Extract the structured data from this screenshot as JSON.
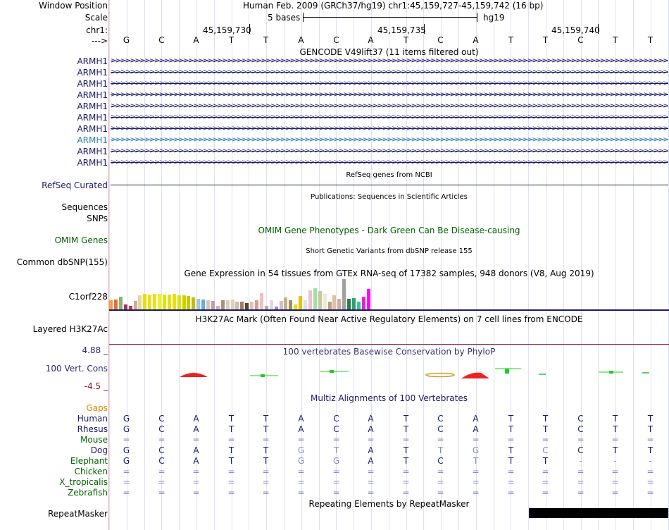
{
  "header": {
    "window_position_label": "Window Position",
    "window_position_value": "Human Feb. 2009 (GRCh37/hg19)   chr1:45,159,727-45,159,742 (16 bp)",
    "scale_label": "Scale",
    "scale_value": "5 bases",
    "scale_assembly": "hg19",
    "chrom_label": "chr1:",
    "coord_ticks": [
      "45,159,730",
      "45,159,735",
      "45,159,740"
    ],
    "strand_label": "--->",
    "bases": [
      "G",
      "C",
      "A",
      "T",
      "T",
      "A",
      "C",
      "A",
      "T",
      "C",
      "A",
      "T",
      "T",
      "C",
      "T",
      "T"
    ]
  },
  "gencode": {
    "title": "GENCODE V49lift37 (11 items filtered out)",
    "items": [
      {
        "label": "ARMH1",
        "highlight": false
      },
      {
        "label": "ARMH1",
        "highlight": false
      },
      {
        "label": "ARMH1",
        "highlight": false
      },
      {
        "label": "ARMH1",
        "highlight": false
      },
      {
        "label": "ARMH1",
        "highlight": false
      },
      {
        "label": "ARMH1",
        "highlight": false
      },
      {
        "label": "ARMH1",
        "highlight": false
      },
      {
        "label": "ARMH1",
        "highlight": true
      },
      {
        "label": "ARMH1",
        "highlight": false
      },
      {
        "label": "ARMH1",
        "highlight": false
      }
    ],
    "arrow_glyphs": ">>>>>>>>>>>>>>>>>>>>>>>>>>>>>>>>>>>>>>>>>>>>>>>>>>>>>>>>>>>>>>>>>>>>>>>>>>>>>>>>>>>>>>>>>>>>>>>>>>>>>>>>>>>>>>>>>>>>>>>>>>>>>>>>>>>>>>>>>>>>>>>>>>>>>>>>>>>>>>>>>>>>>>>"
  },
  "refseq": {
    "title": "RefSeq genes from NCBI",
    "label": "RefSeq Curated"
  },
  "publications": {
    "title": "Publications: Sequences in Scientific Articles",
    "label_sequences": "Sequences",
    "label_snps": "SNPs"
  },
  "omim": {
    "title": "OMIM Gene Phenotypes - Dark Green Can Be Disease-causing",
    "label": "OMIM Genes"
  },
  "dbsnp": {
    "title": "Short Genetic Variants from dbSNP release 155",
    "label": "Common dbSNP(155)"
  },
  "gtex": {
    "title": "Gene Expression in 54 tissues from GTEx RNA-seq of 17382 samples, 948 donors (V8, Aug 2019)",
    "label": "C1orf228",
    "bar_values": [
      0.3,
      0.32,
      0.4,
      0.15,
      0.12,
      0.28,
      0.45,
      0.5,
      0.48,
      0.5,
      0.5,
      0.48,
      0.48,
      0.5,
      0.46,
      0.46,
      0.44,
      0.38,
      0.34,
      0.32,
      0.3,
      0.28,
      0.12,
      0.3,
      0.3,
      0.32,
      0.26,
      0.24,
      0.2,
      0.26,
      0.3,
      0.52,
      0.12,
      0.3,
      0.1,
      0.28,
      0.38,
      0.3,
      0.16,
      0.44,
      0.3,
      0.62,
      0.68,
      0.58,
      0.5,
      0.26,
      0.46,
      0.34,
      0.98,
      0.34,
      0.36,
      0.26,
      0.4,
      0.66
    ],
    "bar_colors": [
      "#f0a050",
      "#e07040",
      "#90b070",
      "#a03070",
      "#e03030",
      "#c0b0a0",
      "#f0d0a0",
      "#e8e000",
      "#e8e020",
      "#e8e020",
      "#f0f020",
      "#e8e000",
      "#e8e000",
      "#e8e010",
      "#e0e000",
      "#d0d000",
      "#c8c800",
      "#c0c000",
      "#a0c8e0",
      "#60b0d0",
      "#e0c0c0",
      "#c0a0a0",
      "#d0b0b0",
      "#b09070",
      "#d8d0c0",
      "#e0d0b0",
      "#c8c0b0",
      "#a08060",
      "#604030",
      "#e8c0b0",
      "#d0a090",
      "#f0c0c0",
      "#c0a0b0",
      "#e0d8e0",
      "#b080b0",
      "#d0c0c0",
      "#c0b090",
      "#a09060",
      "#e8e000",
      "#f0c000",
      "#e0e0e0",
      "#f0c0d0",
      "#a0e0a0",
      "#c8c8a0",
      "#f0e8d0",
      "#c0a080",
      "#e0c0a0",
      "#d0b090",
      "#a0a0a0",
      "#208040",
      "#30a070",
      "#40c090",
      "#e020e0",
      "#ff00ff"
    ]
  },
  "h3k27ac": {
    "title": "H3K27Ac Mark (Often Found Near Active Regulatory Elements) on 7 cell lines from ENCODE",
    "label": "Layered H3K27Ac"
  },
  "phylop": {
    "title": "100 vertebrates Basewise Conservation by PhyloP",
    "label": "100 Vert. Cons",
    "axis_max": "4.88 _",
    "axis_min": "-4.5 _",
    "colors": {
      "positive": "#22cc22",
      "negative": "#ee2222",
      "neutral": "#c8a030",
      "title": "#33336e",
      "axis_max": "#2a2a7a",
      "axis_min": "#8b1a1a"
    }
  },
  "multiz": {
    "title": "Multiz Alignments of 100 Vertebrates",
    "gaps_label": "Gaps",
    "species": [
      {
        "name": "Human",
        "bases": [
          "G",
          "C",
          "A",
          "T",
          "T",
          "A",
          "C",
          "A",
          "T",
          "C",
          "A",
          "T",
          "T",
          "C",
          "T",
          "T"
        ],
        "dim": []
      },
      {
        "name": "Rhesus",
        "bases": [
          "G",
          "C",
          "A",
          "T",
          "T",
          "A",
          "C",
          "A",
          "T",
          "C",
          "A",
          "T",
          "T",
          "C",
          "T",
          "T"
        ],
        "dim": []
      },
      {
        "name": "Mouse",
        "bases": [
          "=",
          "=",
          "=",
          "=",
          "=",
          "=",
          "=",
          "=",
          "=",
          "=",
          "=",
          "=",
          "=",
          "=",
          "=",
          "="
        ],
        "dim": []
      },
      {
        "name": "Dog",
        "bases": [
          "G",
          "C",
          "A",
          "T",
          "T",
          "G",
          "T",
          "A",
          "T",
          "T",
          "G",
          "T",
          "C",
          "C",
          "T",
          "T"
        ],
        "dim": [
          5,
          6,
          9,
          10,
          12
        ]
      },
      {
        "name": "Elephant",
        "bases": [
          "G",
          "C",
          "A",
          "T",
          "T",
          "G",
          "G",
          "A",
          "T",
          "C",
          "T",
          "T",
          "T",
          "-",
          "-",
          "-"
        ],
        "dim": [
          5,
          6,
          10,
          13,
          14,
          15
        ]
      },
      {
        "name": "Chicken",
        "bases": [
          "=",
          "=",
          "=",
          "=",
          "=",
          "=",
          "=",
          "=",
          "=",
          "=",
          "=",
          "=",
          "=",
          "=",
          "=",
          "="
        ],
        "dim": []
      },
      {
        "name": "X_tropicalis",
        "bases": [
          "=",
          "=",
          "=",
          "=",
          "=",
          "=",
          "=",
          "=",
          "=",
          "=",
          "=",
          "=",
          "=",
          "=",
          "=",
          "="
        ],
        "dim": []
      },
      {
        "name": "Zebrafish",
        "bases": [
          "=",
          "=",
          "=",
          "=",
          "=",
          "=",
          "=",
          "=",
          "=",
          "=",
          "=",
          "=",
          "=",
          "=",
          "=",
          "="
        ],
        "dim": []
      }
    ]
  },
  "repeatmasker": {
    "title": "Repeating Elements by RepeatMasker",
    "label": "RepeatMasker"
  }
}
